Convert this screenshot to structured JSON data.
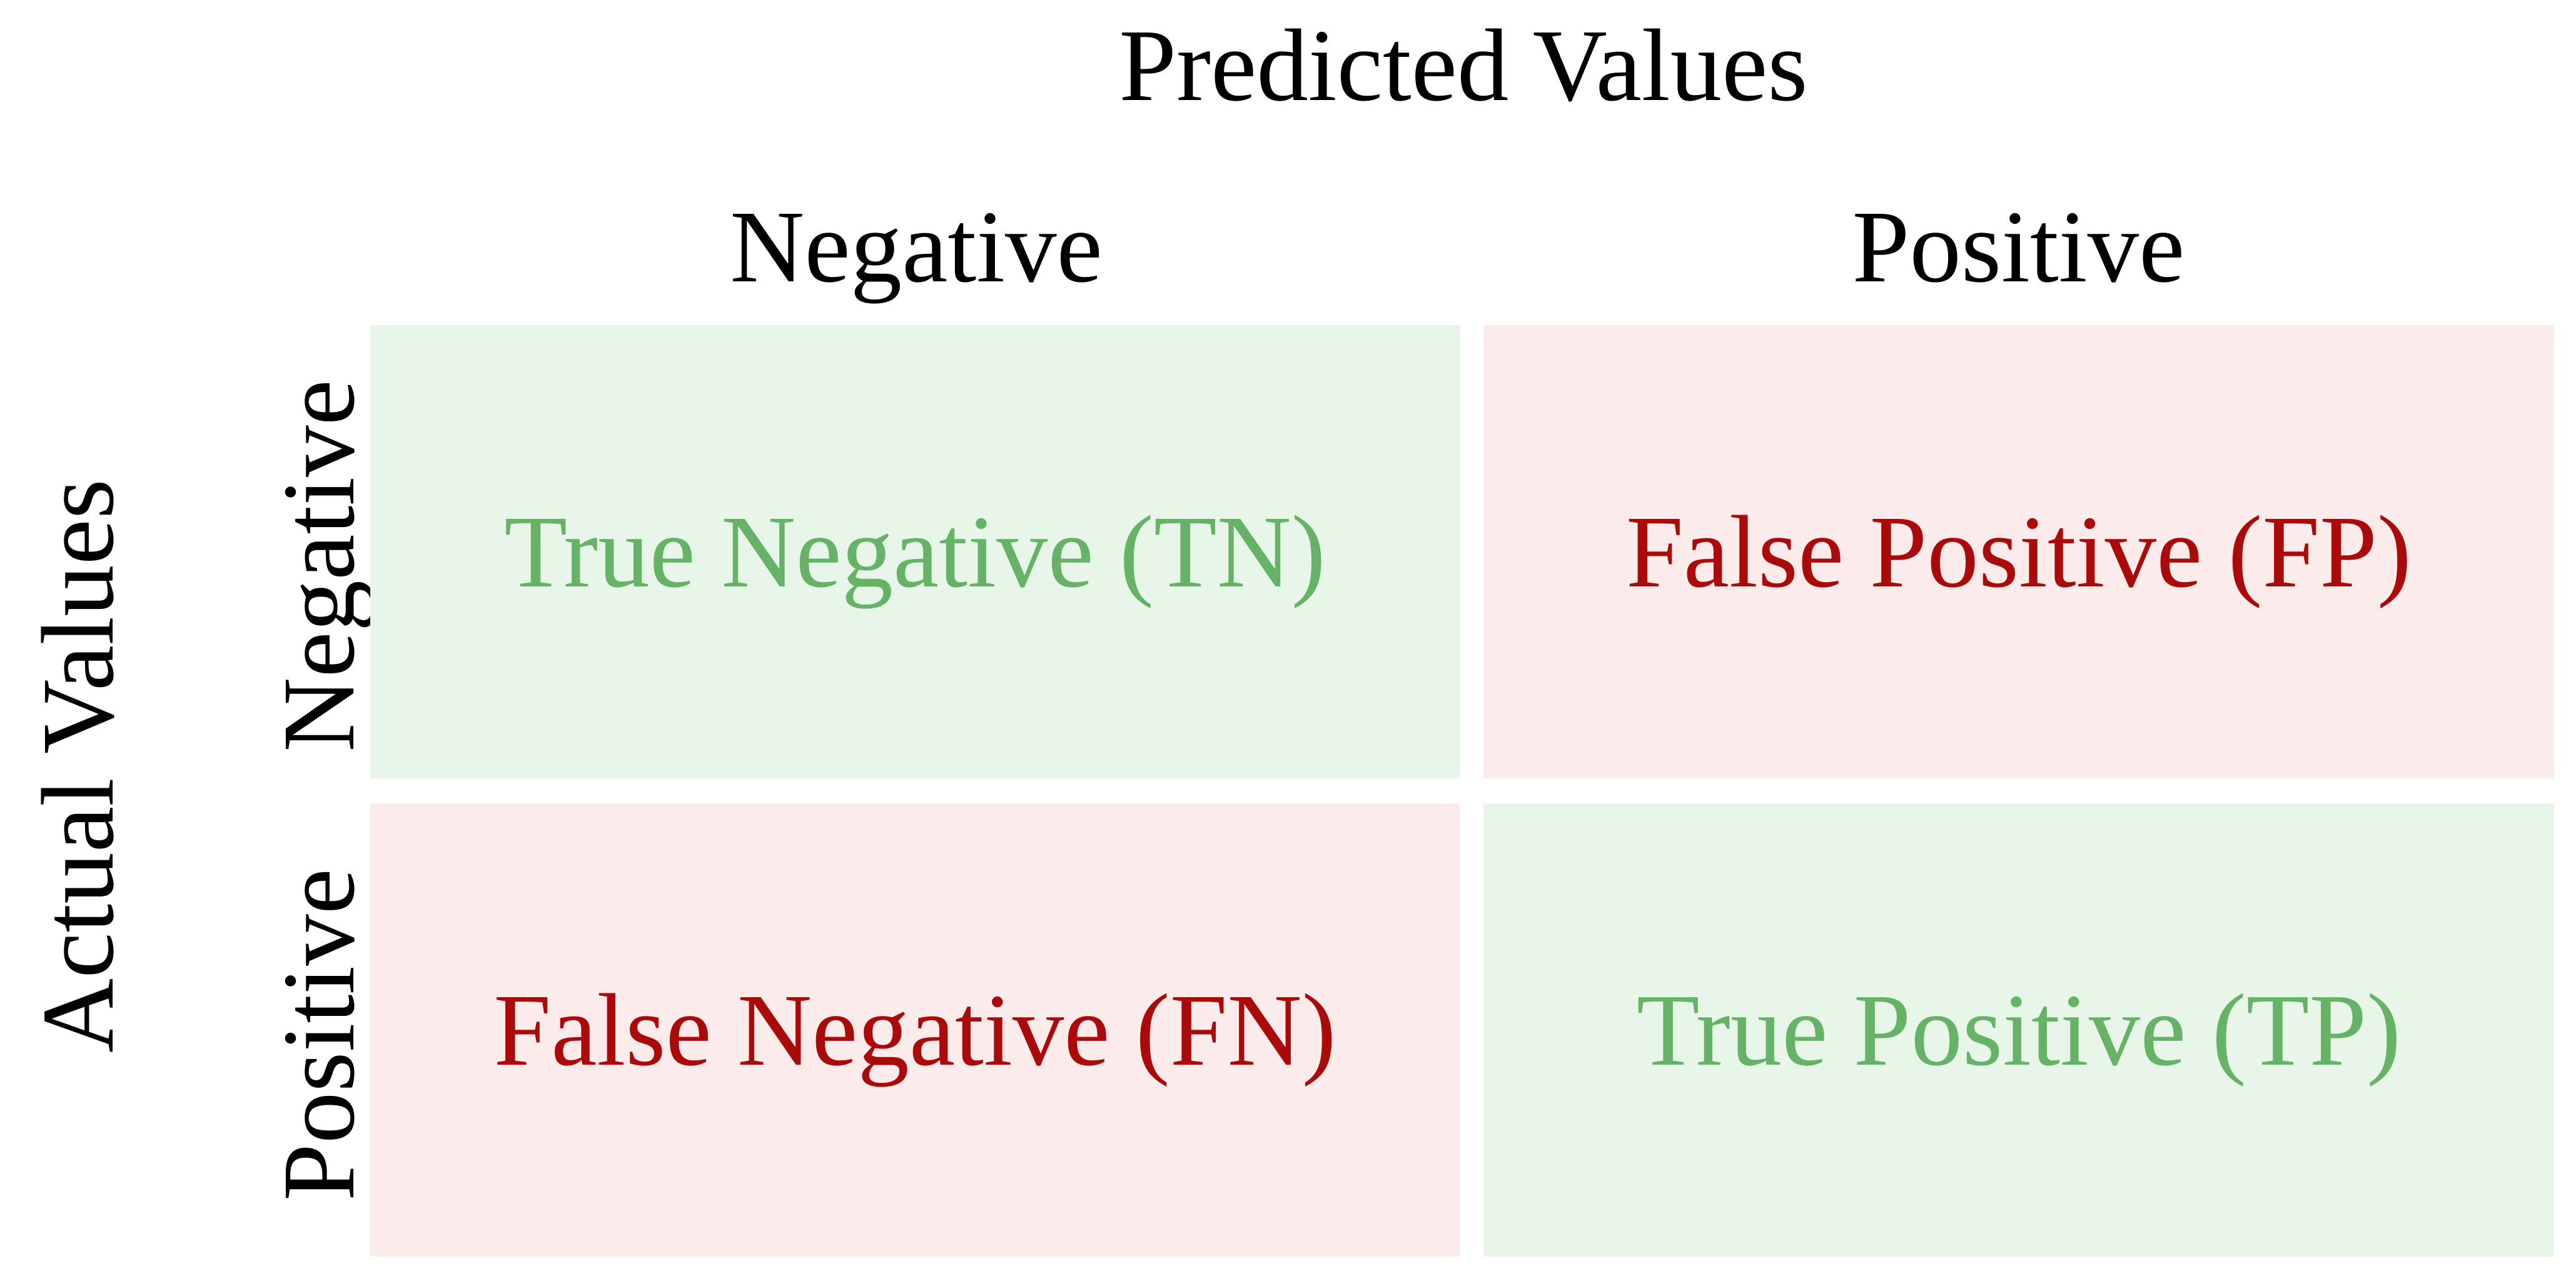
{
  "title": "Predicted Values",
  "y_title": "Actual Values",
  "columns": [
    "Negative",
    "Positive"
  ],
  "rows": [
    "Negative",
    "Positive"
  ],
  "cells": {
    "tn": {
      "label": "True Negative (TN)",
      "bg": "#e8f5e9",
      "color": "#66b266"
    },
    "fp": {
      "label": "False Positive (FP)",
      "bg": "#fcebeb",
      "color": "#aa0a0a"
    },
    "fn": {
      "label": "False Negative (FN)",
      "bg": "#fcebeb",
      "color": "#aa0a0a"
    },
    "tp": {
      "label": "True Positive (TP)",
      "bg": "#e8f5e9",
      "color": "#66b266"
    }
  }
}
